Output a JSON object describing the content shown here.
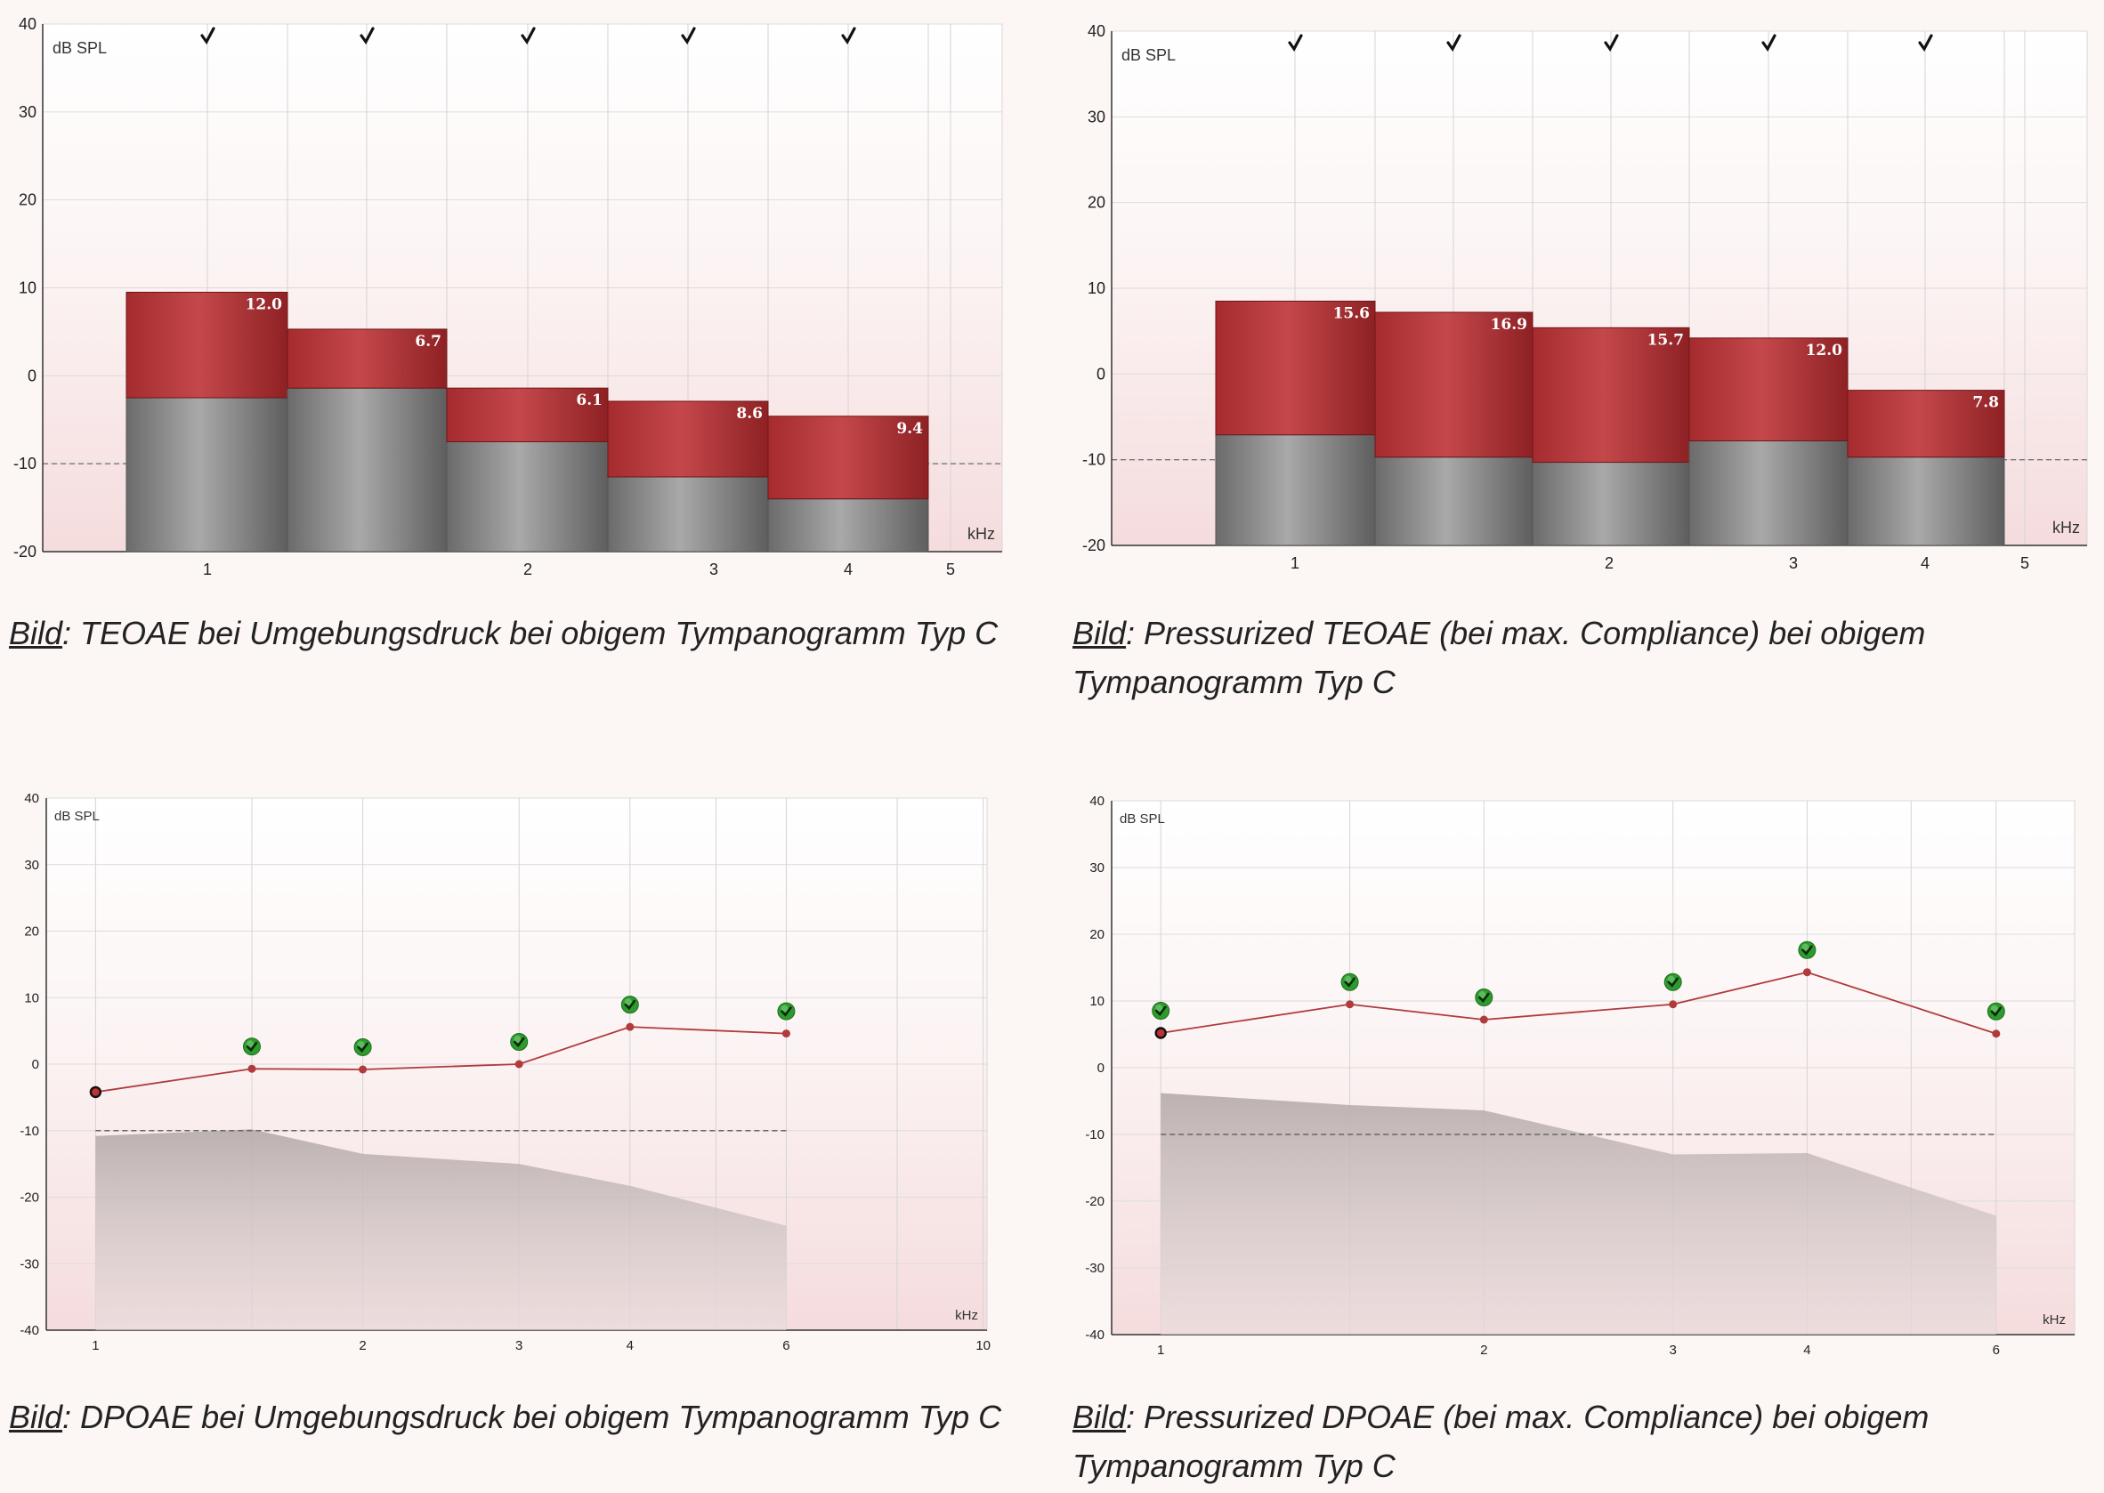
{
  "colors": {
    "page_bg": "#fcf6f5",
    "red": "#a52b2e",
    "red_light": "#c4484b",
    "gray_dark": "#6b6b6b",
    "gray_light": "#a9a9a9",
    "noise_fill": "#bfb6b5",
    "line": "#b03a3c",
    "check_green": "#2e9a2e"
  },
  "chart_data": [
    {
      "id": "teoae-ambient",
      "type": "bar",
      "ylabel": "dB SPL",
      "xlabel": "kHz",
      "ylim": [
        -20,
        40
      ],
      "yticks": [
        40,
        30,
        20,
        10,
        0,
        -10,
        -20
      ],
      "xticks": [
        "1",
        "2",
        "3",
        "4",
        "5"
      ],
      "reference_line": -10,
      "checkmarks": 5,
      "bars": [
        {
          "total": 9.5,
          "noise": -2.5,
          "label": "12.0"
        },
        {
          "total": 5.3,
          "noise": -1.4,
          "label": "6.7"
        },
        {
          "total": -1.4,
          "noise": -7.5,
          "label": "6.1"
        },
        {
          "total": -2.9,
          "noise": -11.5,
          "label": "8.6"
        },
        {
          "total": -4.6,
          "noise": -14.0,
          "label": "9.4"
        }
      ]
    },
    {
      "id": "teoae-pressurized",
      "type": "bar",
      "ylabel": "dB SPL",
      "xlabel": "kHz",
      "ylim": [
        -20,
        40
      ],
      "yticks": [
        40,
        30,
        20,
        10,
        0,
        -10,
        -20
      ],
      "xticks": [
        "1",
        "2",
        "3",
        "4",
        "5"
      ],
      "reference_line": -10,
      "checkmarks": 5,
      "bars": [
        {
          "total": 8.5,
          "noise": -7.1,
          "label": "15.6"
        },
        {
          "total": 7.2,
          "noise": -9.7,
          "label": "16.9"
        },
        {
          "total": 5.4,
          "noise": -10.3,
          "label": "15.7"
        },
        {
          "total": 4.2,
          "noise": -7.8,
          "label": "12.0"
        },
        {
          "total": -1.9,
          "noise": -9.7,
          "label": "7.8"
        }
      ]
    },
    {
      "id": "dpoae-ambient",
      "type": "line",
      "ylabel": "dB SPL",
      "xlabel": "kHz",
      "ylim": [
        -40,
        40
      ],
      "yticks": [
        40,
        30,
        20,
        10,
        0,
        -10,
        -20,
        -30,
        -40
      ],
      "xticks": [
        "1",
        "2",
        "3",
        "4",
        "6",
        "10"
      ],
      "reference_line": -10,
      "series": [
        {
          "x": [
            1,
            1.5,
            2,
            3,
            4,
            6
          ],
          "y": [
            -4.2,
            -0.7,
            -0.8,
            0,
            5.6,
            4.6
          ],
          "passed": [
            false,
            true,
            true,
            true,
            true,
            true
          ]
        }
      ],
      "noise_floor": {
        "x": [
          1,
          1.5,
          2,
          3,
          4,
          6
        ],
        "y": [
          -10.8,
          -9.8,
          -13.5,
          -15.0,
          -18.3,
          -24.3
        ]
      }
    },
    {
      "id": "dpoae-pressurized",
      "type": "line",
      "ylabel": "dB SPL",
      "xlabel": "kHz",
      "ylim": [
        -40,
        40
      ],
      "yticks": [
        40,
        30,
        20,
        10,
        0,
        -10,
        -20,
        -30,
        -40
      ],
      "xticks": [
        "1",
        "2",
        "3",
        "4",
        "6"
      ],
      "reference_line": -10,
      "series": [
        {
          "x": [
            1,
            1.5,
            2,
            3,
            4,
            6
          ],
          "y": [
            5.2,
            9.5,
            7.2,
            9.5,
            14.3,
            5.1
          ],
          "passed": [
            true,
            true,
            true,
            true,
            true,
            true
          ]
        }
      ],
      "noise_floor": {
        "x": [
          1,
          1.5,
          2,
          3,
          4,
          6
        ],
        "y": [
          -3.8,
          -5.6,
          -6.4,
          -13.0,
          -12.8,
          -22.2
        ]
      }
    }
  ],
  "captions": [
    {
      "lead": "Bild",
      "text": ": TEOAE bei Umgebungsdruck bei obigem Tympanogramm Typ C"
    },
    {
      "lead": "Bild",
      "text": ": Pressurized TEOAE (bei max. Compliance) bei obigem",
      "text2": "Tympanogramm Typ C"
    },
    {
      "lead": "Bild",
      "text": ": DPOAE bei Umgebungsdruck bei obigem Tympanogramm Typ C"
    },
    {
      "lead": "Bild",
      "text": ": Pressurized DPOAE (bei max. Compliance) bei obigem",
      "text2": "Tympanogramm Typ C"
    }
  ]
}
